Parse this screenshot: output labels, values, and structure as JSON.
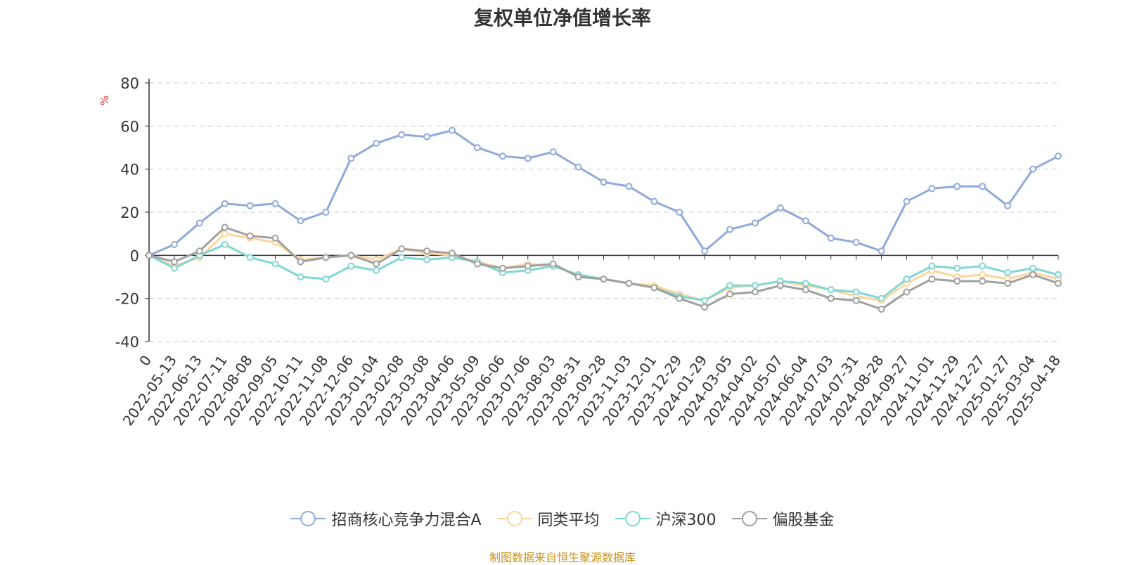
{
  "chart_data": {
    "type": "line",
    "title": "复权单位净值增长率",
    "ylabel": "%",
    "ylim": [
      -40,
      80
    ],
    "yticks": [
      80,
      60,
      40,
      20,
      0,
      -20,
      -40
    ],
    "grid": true,
    "legend_position": "bottom",
    "xticks": [
      "0",
      "2022-05-13",
      "2022-06-13",
      "2022-07-11",
      "2022-08-08",
      "2022-09-05",
      "2022-10-11",
      "2022-11-08",
      "2022-12-06",
      "2023-01-04",
      "2023-02-08",
      "2023-03-08",
      "2023-04-06",
      "2023-05-09",
      "2023-06-06",
      "2023-07-06",
      "2023-08-03",
      "2023-08-31",
      "2023-09-28",
      "2023-11-03",
      "2023-12-01",
      "2023-12-29",
      "2024-01-29",
      "2024-03-05",
      "2024-04-02",
      "2024-05-07",
      "2024-06-04",
      "2024-07-03",
      "2024-07-31",
      "2024-08-28",
      "2024-09-27",
      "2024-11-01",
      "2024-11-29",
      "2024-12-27",
      "2025-01-27",
      "2025-03-04",
      "2025-04-18"
    ],
    "x": [
      "0",
      "2022-05-13",
      "2022-06-13",
      "2022-07-11",
      "2022-08-08",
      "2022-09-05",
      "2022-10-11",
      "2022-11-08",
      "2022-12-06",
      "2023-01-04",
      "2023-02-08",
      "2023-03-08",
      "2023-04-06",
      "2023-05-09",
      "2023-06-06",
      "2023-07-06",
      "2023-08-03",
      "2023-08-31",
      "2023-09-28",
      "2023-11-03",
      "2023-12-01",
      "2023-12-29",
      "2024-01-29",
      "2024-03-05",
      "2024-04-02",
      "2024-05-07",
      "2024-06-04",
      "2024-07-03",
      "2024-07-31",
      "2024-08-28",
      "2024-09-27",
      "2024-11-01",
      "2024-11-29",
      "2024-12-27",
      "2025-01-27",
      "2025-03-04",
      "2025-04-18"
    ],
    "series": [
      {
        "name": "招商核心竞争力混合A",
        "color": "#8eaadb",
        "values": [
          0,
          5,
          15,
          24,
          23,
          24,
          16,
          20,
          45,
          52,
          56,
          55,
          58,
          50,
          46,
          45,
          48,
          41,
          34,
          32,
          25,
          20,
          2,
          12,
          15,
          22,
          16,
          8,
          6,
          2,
          25,
          31,
          32,
          32,
          23,
          40,
          46
        ]
      },
      {
        "name": "同类平均",
        "color": "#fdd59b",
        "values": [
          0,
          -5,
          -1,
          10,
          8,
          6,
          -2,
          -1,
          0,
          -2,
          3,
          1,
          0,
          -3,
          -6,
          -4,
          -5,
          -9,
          -11,
          -13,
          -14,
          -18,
          -21,
          -15,
          -14,
          -12,
          -14,
          -16,
          -19,
          -21,
          -13,
          -7,
          -10,
          -9,
          -11,
          -8,
          -11
        ]
      },
      {
        "name": "沪深300",
        "color": "#7fd7d4",
        "values": [
          0,
          -6,
          0,
          5,
          -1,
          -4,
          -10,
          -11,
          -5,
          -7,
          -1,
          -2,
          -1,
          -3,
          -8,
          -7,
          -5,
          -9,
          -11,
          -13,
          -15,
          -19,
          -21,
          -14,
          -14,
          -12,
          -13,
          -16,
          -17,
          -20,
          -11,
          -5,
          -6,
          -5,
          -8,
          -6,
          -9
        ]
      },
      {
        "name": "偏股基金",
        "color": "#a0a0a0",
        "values": [
          0,
          -3,
          2,
          13,
          9,
          8,
          -3,
          -1,
          0,
          -4,
          3,
          2,
          1,
          -4,
          -6,
          -5,
          -4,
          -10,
          -11,
          -13,
          -15,
          -20,
          -24,
          -18,
          -17,
          -14,
          -16,
          -20,
          -21,
          -25,
          -17,
          -11,
          -12,
          -12,
          -13,
          -9,
          -13
        ]
      }
    ]
  },
  "legend_icon": "circle-line-marker",
  "source_note": "制图数据来自恒生聚源数据库"
}
